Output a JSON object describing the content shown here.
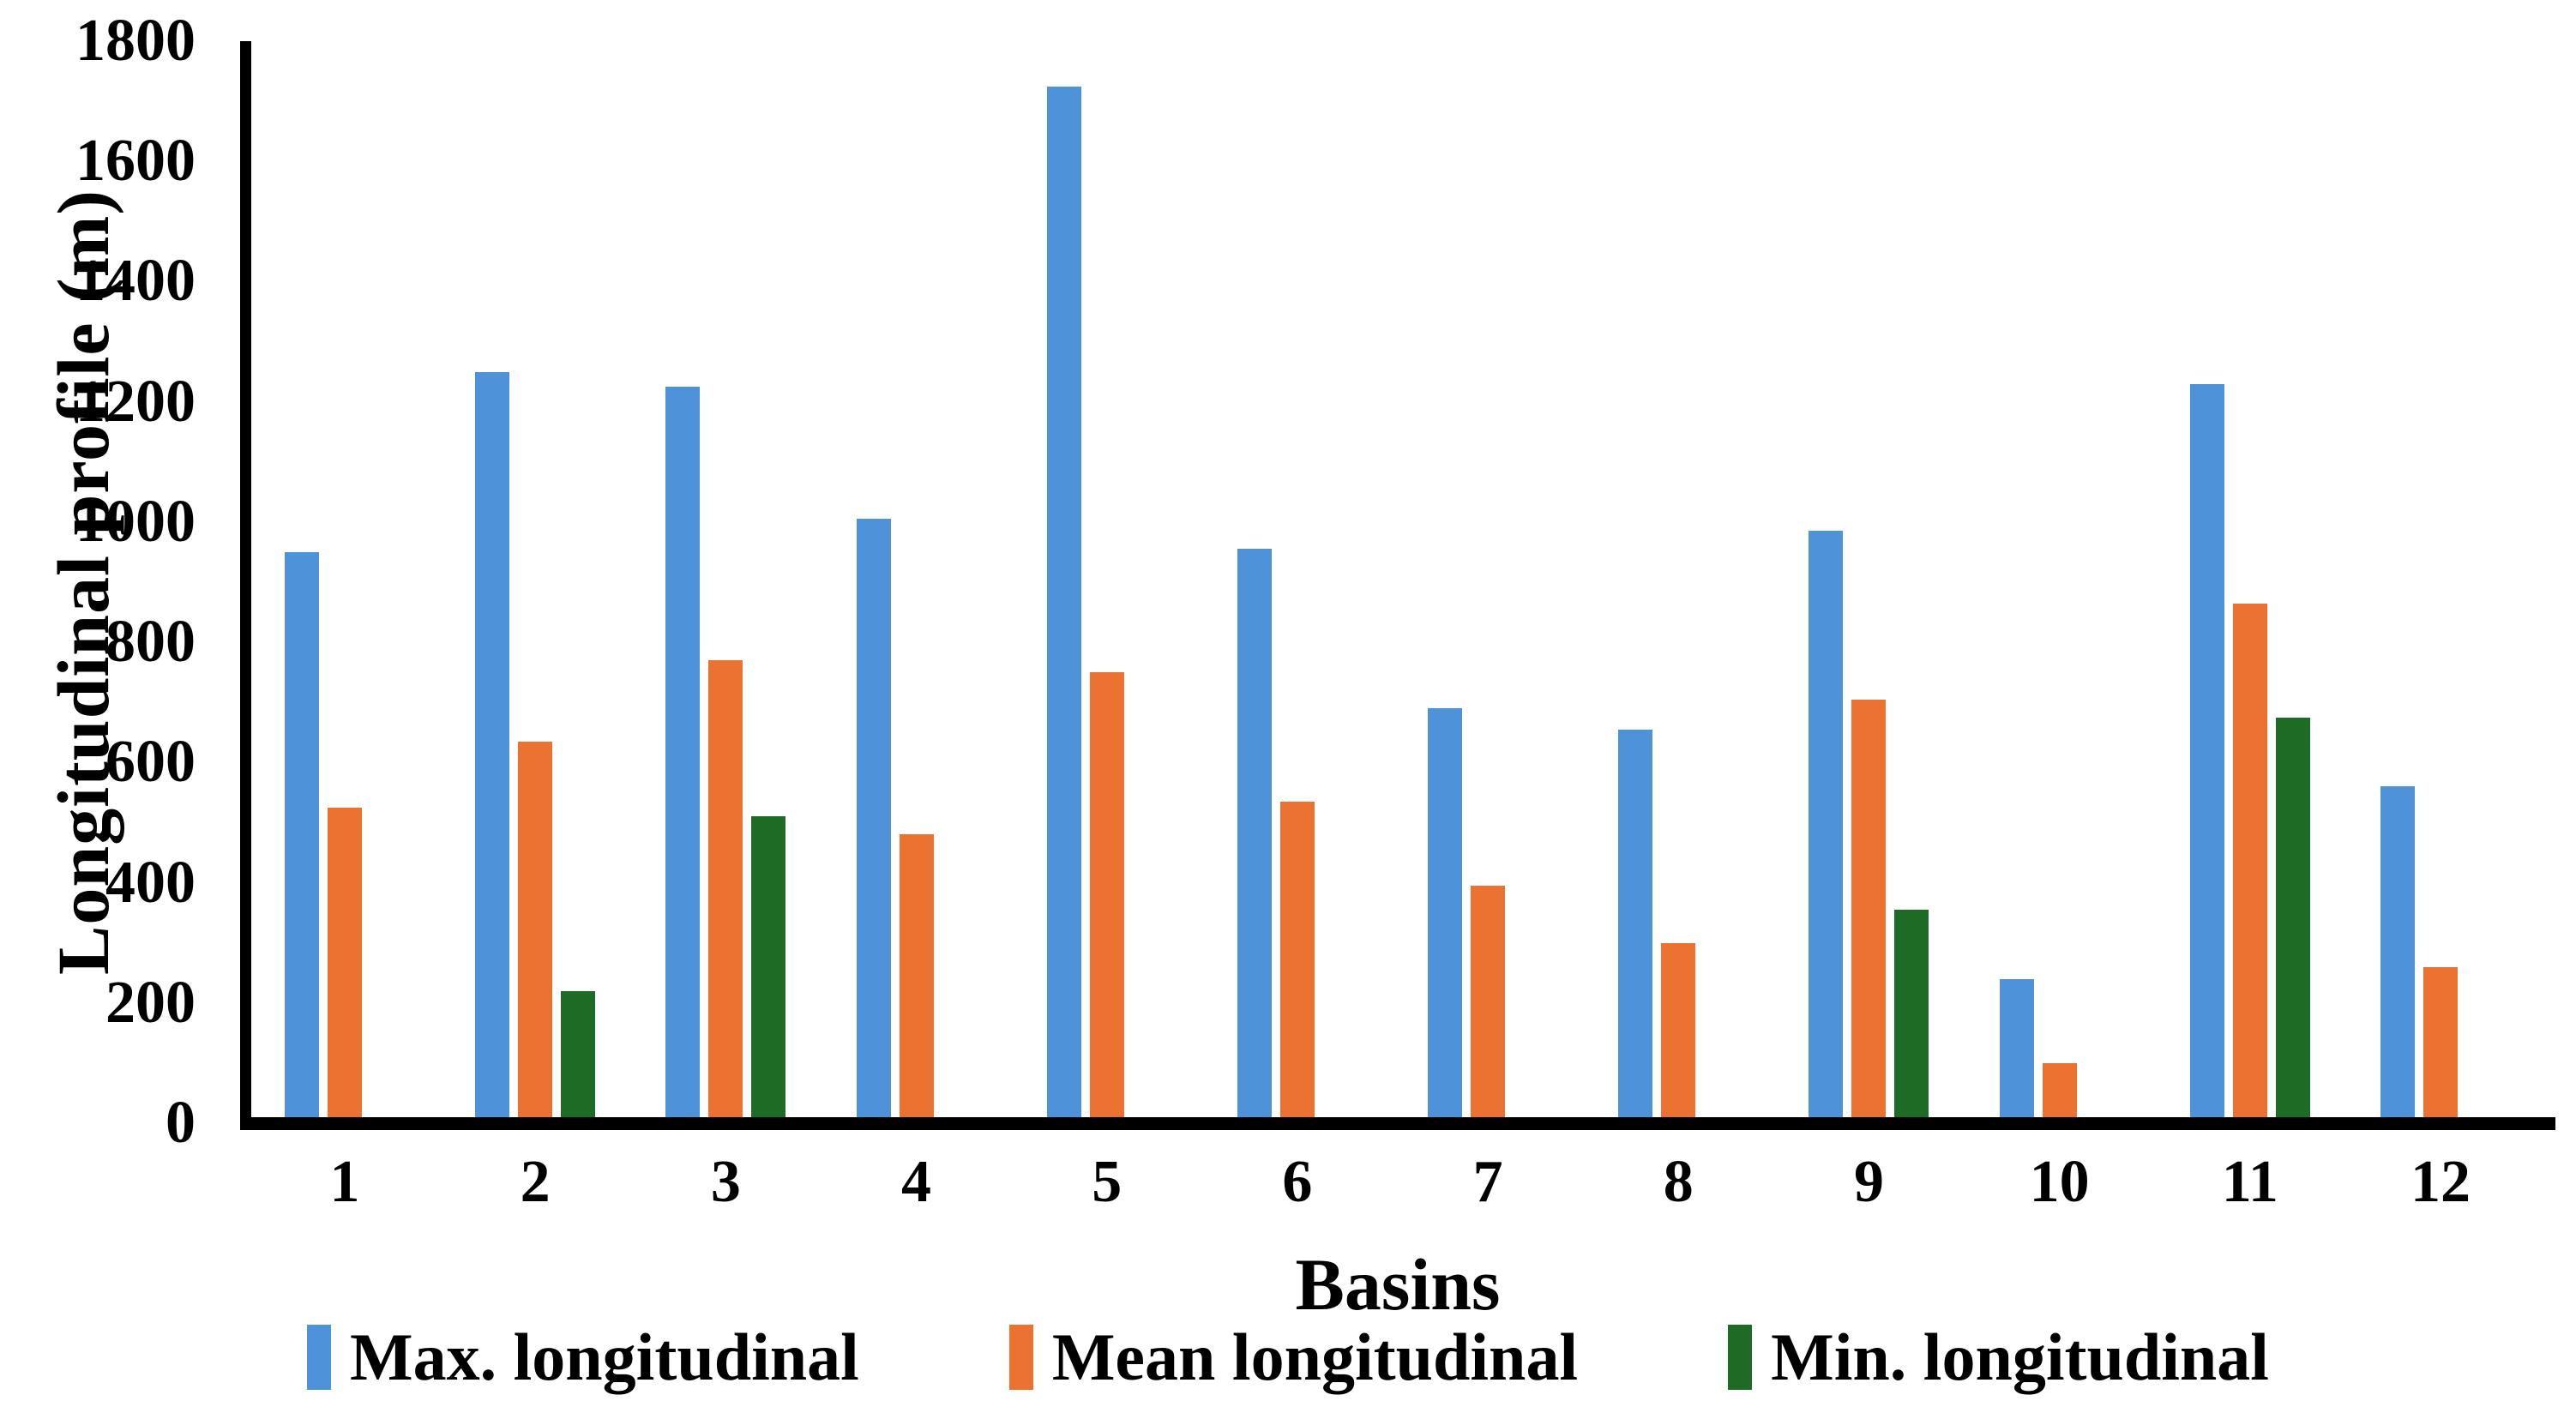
{
  "chart_data": {
    "type": "bar",
    "title": "",
    "categories": [
      "1",
      "2",
      "3",
      "4",
      "5",
      "6",
      "7",
      "8",
      "9",
      "10",
      "11",
      "12"
    ],
    "series": [
      {
        "name": "Max. longitudinal",
        "color": "#4E93D9",
        "values": [
          950,
          1250,
          1225,
          1005,
          1725,
          955,
          690,
          655,
          985,
          240,
          1230,
          560
        ]
      },
      {
        "name": "Mean longitudinal",
        "color": "#EC7231",
        "values": [
          525,
          635,
          770,
          480,
          750,
          535,
          395,
          300,
          705,
          100,
          865,
          260
        ]
      },
      {
        "name": "Min. longitudinal",
        "color": "#1E6B26",
        "values": [
          0,
          220,
          510,
          0,
          0,
          0,
          0,
          0,
          355,
          0,
          675,
          0
        ]
      }
    ],
    "xlabel": "Basins",
    "ylabel": "Longitudinal profile (m)",
    "ylim": [
      0,
      1800
    ],
    "ytick_step": 200,
    "yticks": [
      "1800",
      "1600",
      "1400",
      "1200",
      "1000",
      "800",
      "600",
      "400",
      "200",
      "0"
    ],
    "grid": false,
    "legend_position": "bottom",
    "bar_color_axis": "#000000",
    "note_missing_min_bars": "Basins 1, 4, 5, 6, 7, 8, 10 and 12 show no Min. longitudinal bar (value 0)"
  }
}
